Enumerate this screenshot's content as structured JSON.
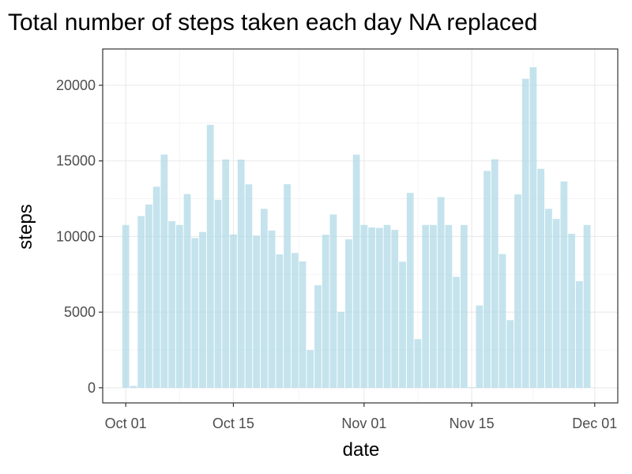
{
  "chart_data": {
    "type": "bar",
    "title": "Total number of steps taken each day NA replaced",
    "xlabel": "date",
    "ylabel": "steps",
    "ylim": [
      -1000,
      22400
    ],
    "bar_color": "#add8e6",
    "grid": true,
    "y_ticks": [
      0,
      5000,
      10000,
      15000,
      20000
    ],
    "x_ticks": [
      {
        "label": "Oct 01",
        "date": "2012-10-01"
      },
      {
        "label": "Oct 15",
        "date": "2012-10-15"
      },
      {
        "label": "Nov 01",
        "date": "2012-11-01"
      },
      {
        "label": "Nov 15",
        "date": "2012-11-15"
      },
      {
        "label": "Dec 01",
        "date": "2012-12-01"
      }
    ],
    "x_range": [
      "2012-09-28",
      "2012-12-04"
    ],
    "first_date": "2012-10-01",
    "values": [
      10766,
      126,
      11352,
      12116,
      13294,
      15420,
      11015,
      10766,
      12811,
      9900,
      10304,
      17382,
      12426,
      15098,
      10139,
      15084,
      13452,
      10056,
      11829,
      10395,
      8821,
      13460,
      8918,
      8355,
      2492,
      6778,
      10119,
      11458,
      5018,
      9819,
      15414,
      10766,
      10600,
      10571,
      10766,
      10439,
      8334,
      12883,
      3219,
      10766,
      10766,
      12608,
      10765,
      7336,
      10766,
      41,
      5441,
      14339,
      15110,
      8841,
      4472,
      12787,
      20427,
      21194,
      14478,
      11834,
      11162,
      13646,
      10183,
      7047,
      10766
    ]
  }
}
